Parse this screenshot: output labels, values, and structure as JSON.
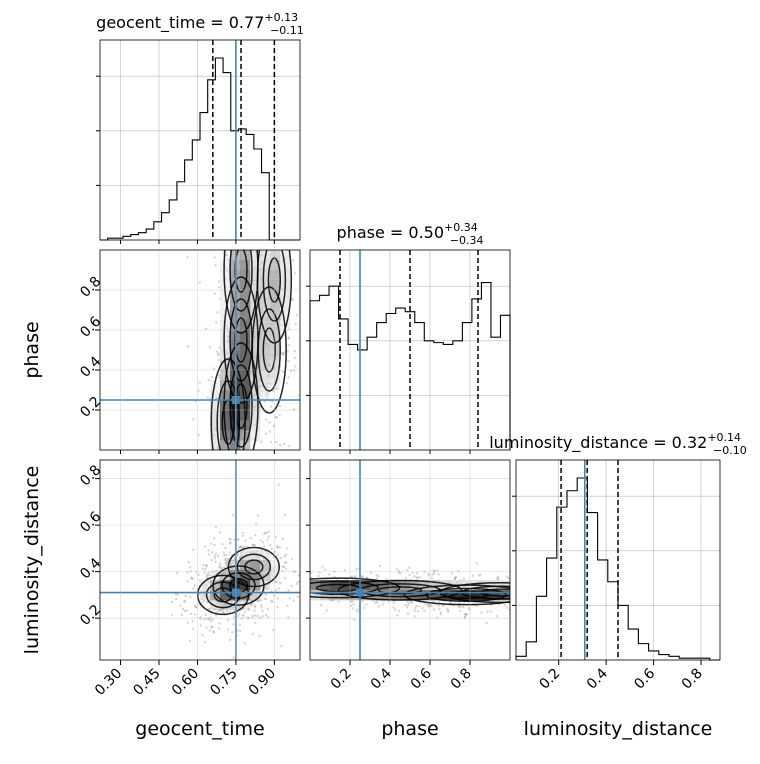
{
  "chart_data": {
    "type": "corner",
    "truth_color": "#4682b4",
    "params": [
      {
        "name": "geocent_time",
        "range": [
          0.22,
          1.0
        ],
        "ticks": [
          "0.30",
          "0.45",
          "0.60",
          "0.75",
          "0.90"
        ],
        "tick_values": [
          0.3,
          0.45,
          0.6,
          0.75,
          0.9
        ],
        "truth": 0.75,
        "title_main": "geocent_time = 0.77",
        "title_sup": "+0.13",
        "title_sub": "−0.11",
        "quantiles": [
          0.66,
          0.77,
          0.9
        ]
      },
      {
        "name": "phase",
        "range": [
          0.0,
          1.0
        ],
        "ticks": [
          "0.2",
          "0.4",
          "0.6",
          "0.8"
        ],
        "tick_values": [
          0.2,
          0.4,
          0.6,
          0.8
        ],
        "truth": 0.25,
        "title_main": "phase = 0.50",
        "title_sup": "+0.34",
        "title_sub": "−0.34",
        "quantiles": [
          0.15,
          0.5,
          0.84
        ]
      },
      {
        "name": "luminosity_distance",
        "range": [
          0.02,
          0.88
        ],
        "ticks": [
          "0.2",
          "0.4",
          "0.6",
          "0.8"
        ],
        "tick_values": [
          0.2,
          0.4,
          0.6,
          0.8
        ],
        "truth": 0.31,
        "title_main": "luminosity_distance = 0.32",
        "title_sup": "+0.14",
        "title_sub": "−0.10",
        "quantiles": [
          0.21,
          0.32,
          0.45
        ]
      }
    ],
    "histograms": [
      {
        "param": "geocent_time",
        "heights": [
          0.0,
          0.01,
          0.01,
          0.02,
          0.03,
          0.04,
          0.06,
          0.1,
          0.15,
          0.22,
          0.32,
          0.44,
          0.55,
          0.7,
          0.88,
          1.0,
          0.92,
          0.6,
          0.61,
          0.58,
          0.5,
          0.37,
          0,
          0,
          0,
          0
        ]
      },
      {
        "param": "phase",
        "heights": [
          0.82,
          0.85,
          0.9,
          0.72,
          0.58,
          0.55,
          0.62,
          0.7,
          0.75,
          0.78,
          0.76,
          0.7,
          0.6,
          0.59,
          0.58,
          0.6,
          0.7,
          0.83,
          0.92,
          0.62,
          0.74
        ]
      },
      {
        "param": "luminosity_distance",
        "heights": [
          0.02,
          0.1,
          0.35,
          0.56,
          0.84,
          0.93,
          1.0,
          0.81,
          0.55,
          0.43,
          0.3,
          0.17,
          0.09,
          0.05,
          0.03,
          0.02,
          0.01,
          0.01,
          0.01,
          0.0
        ]
      }
    ],
    "hist2d": [
      {
        "x": "geocent_time",
        "y": "phase",
        "density_centers": [
          [
            0.77,
            0.9,
            0.8
          ],
          [
            0.77,
            0.55,
            0.9
          ],
          [
            0.77,
            0.22,
            1.0
          ],
          [
            0.72,
            0.14,
            0.9
          ],
          [
            0.88,
            0.5,
            0.5
          ],
          [
            0.9,
            0.85,
            0.6
          ]
        ],
        "x_spread": 0.06,
        "y_spread": 0.45
      },
      {
        "x": "geocent_time",
        "y": "luminosity_distance",
        "density_centers": [
          [
            0.76,
            0.34,
            1.0
          ],
          [
            0.82,
            0.42,
            0.6
          ],
          [
            0.7,
            0.3,
            0.5
          ]
        ],
        "x_spread": 0.09,
        "y_spread": 0.12
      },
      {
        "x": "phase",
        "y": "luminosity_distance",
        "density_centers": [
          [
            0.14,
            0.33,
            1.0
          ],
          [
            0.45,
            0.32,
            0.8
          ],
          [
            0.78,
            0.3,
            0.8
          ],
          [
            0.96,
            0.31,
            0.5
          ]
        ],
        "x_spread": 0.28,
        "y_spread": 0.06
      }
    ]
  }
}
